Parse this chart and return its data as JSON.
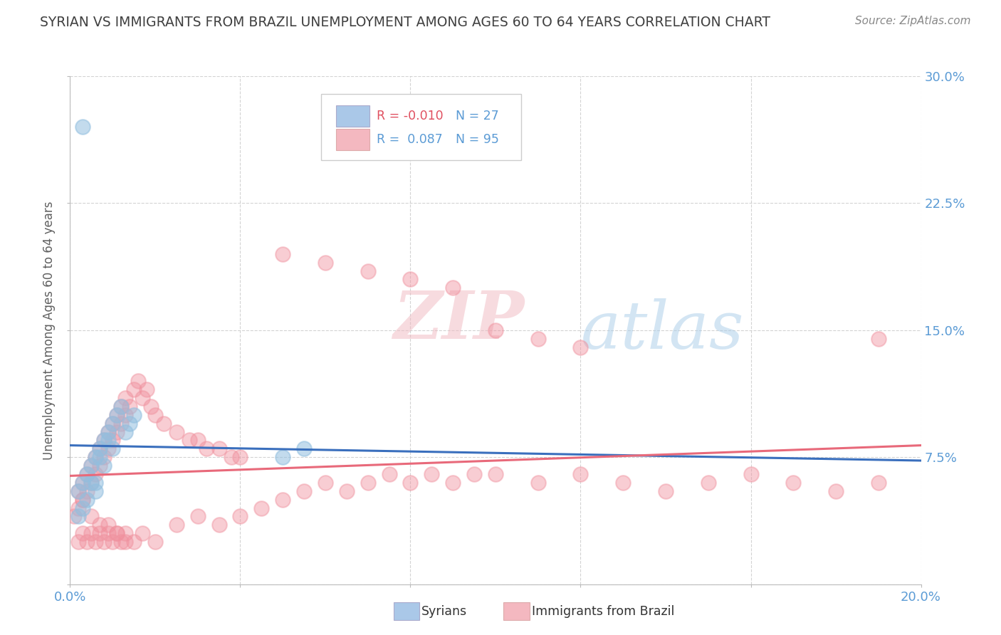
{
  "title": "SYRIAN VS IMMIGRANTS FROM BRAZIL UNEMPLOYMENT AMONG AGES 60 TO 64 YEARS CORRELATION CHART",
  "source": "Source: ZipAtlas.com",
  "ylabel": "Unemployment Among Ages 60 to 64 years",
  "xlim": [
    0.0,
    0.2
  ],
  "ylim": [
    0.0,
    0.3
  ],
  "xticks": [
    0.0,
    0.04,
    0.08,
    0.12,
    0.16,
    0.2
  ],
  "yticks": [
    0.0,
    0.075,
    0.15,
    0.225,
    0.3
  ],
  "syrians_r": -0.01,
  "brazil_r": 0.087,
  "syrian_color": "#92bfdf",
  "brazil_color": "#f0919e",
  "syrian_line_color": "#3a6fbd",
  "brazil_line_color": "#e8697a",
  "background_color": "#ffffff",
  "grid_color": "#c8c8c8",
  "title_color": "#404040",
  "tick_label_color": "#5b9bd5",
  "ylabel_color": "#606060",
  "legend_r1": "R = -0.010",
  "legend_n1": "N = 27",
  "legend_r2": "R =  0.087",
  "legend_n2": "N = 95",
  "legend_patch1_color": "#aac8e8",
  "legend_patch2_color": "#f4b8c0",
  "watermark_zip": "ZIP",
  "watermark_atlas": "atlas",
  "syrians_x": [
    0.002,
    0.003,
    0.004,
    0.005,
    0.006,
    0.007,
    0.008,
    0.009,
    0.01,
    0.011,
    0.012,
    0.002,
    0.003,
    0.005,
    0.006,
    0.008,
    0.01,
    0.013,
    0.014,
    0.015,
    0.003,
    0.007,
    0.009,
    0.004,
    0.006,
    0.05,
    0.055
  ],
  "syrians_y": [
    0.055,
    0.06,
    0.065,
    0.07,
    0.075,
    0.08,
    0.085,
    0.09,
    0.095,
    0.1,
    0.105,
    0.04,
    0.045,
    0.06,
    0.055,
    0.07,
    0.08,
    0.09,
    0.095,
    0.1,
    0.27,
    0.075,
    0.085,
    0.05,
    0.06,
    0.075,
    0.08
  ],
  "brazil_x": [
    0.001,
    0.002,
    0.002,
    0.003,
    0.003,
    0.004,
    0.004,
    0.005,
    0.005,
    0.006,
    0.006,
    0.007,
    0.007,
    0.008,
    0.008,
    0.009,
    0.009,
    0.01,
    0.01,
    0.011,
    0.011,
    0.012,
    0.012,
    0.013,
    0.013,
    0.014,
    0.015,
    0.016,
    0.017,
    0.018,
    0.019,
    0.02,
    0.022,
    0.025,
    0.028,
    0.03,
    0.032,
    0.035,
    0.038,
    0.04,
    0.002,
    0.003,
    0.004,
    0.005,
    0.006,
    0.007,
    0.008,
    0.009,
    0.01,
    0.011,
    0.012,
    0.013,
    0.015,
    0.017,
    0.02,
    0.025,
    0.03,
    0.035,
    0.04,
    0.045,
    0.05,
    0.055,
    0.06,
    0.065,
    0.07,
    0.075,
    0.08,
    0.085,
    0.09,
    0.095,
    0.1,
    0.11,
    0.12,
    0.13,
    0.14,
    0.15,
    0.16,
    0.17,
    0.18,
    0.19,
    0.05,
    0.06,
    0.07,
    0.08,
    0.09,
    0.1,
    0.11,
    0.12,
    0.19,
    0.003,
    0.005,
    0.007,
    0.009,
    0.011,
    0.013
  ],
  "brazil_y": [
    0.04,
    0.045,
    0.055,
    0.05,
    0.06,
    0.055,
    0.065,
    0.06,
    0.07,
    0.065,
    0.075,
    0.07,
    0.08,
    0.075,
    0.085,
    0.08,
    0.09,
    0.085,
    0.095,
    0.09,
    0.1,
    0.095,
    0.105,
    0.1,
    0.11,
    0.105,
    0.115,
    0.12,
    0.11,
    0.115,
    0.105,
    0.1,
    0.095,
    0.09,
    0.085,
    0.085,
    0.08,
    0.08,
    0.075,
    0.075,
    0.025,
    0.03,
    0.025,
    0.03,
    0.025,
    0.03,
    0.025,
    0.03,
    0.025,
    0.03,
    0.025,
    0.03,
    0.025,
    0.03,
    0.025,
    0.035,
    0.04,
    0.035,
    0.04,
    0.045,
    0.05,
    0.055,
    0.06,
    0.055,
    0.06,
    0.065,
    0.06,
    0.065,
    0.06,
    0.065,
    0.065,
    0.06,
    0.065,
    0.06,
    0.055,
    0.06,
    0.065,
    0.06,
    0.055,
    0.06,
    0.195,
    0.19,
    0.185,
    0.18,
    0.175,
    0.15,
    0.145,
    0.14,
    0.145,
    0.05,
    0.04,
    0.035,
    0.035,
    0.03,
    0.025
  ]
}
